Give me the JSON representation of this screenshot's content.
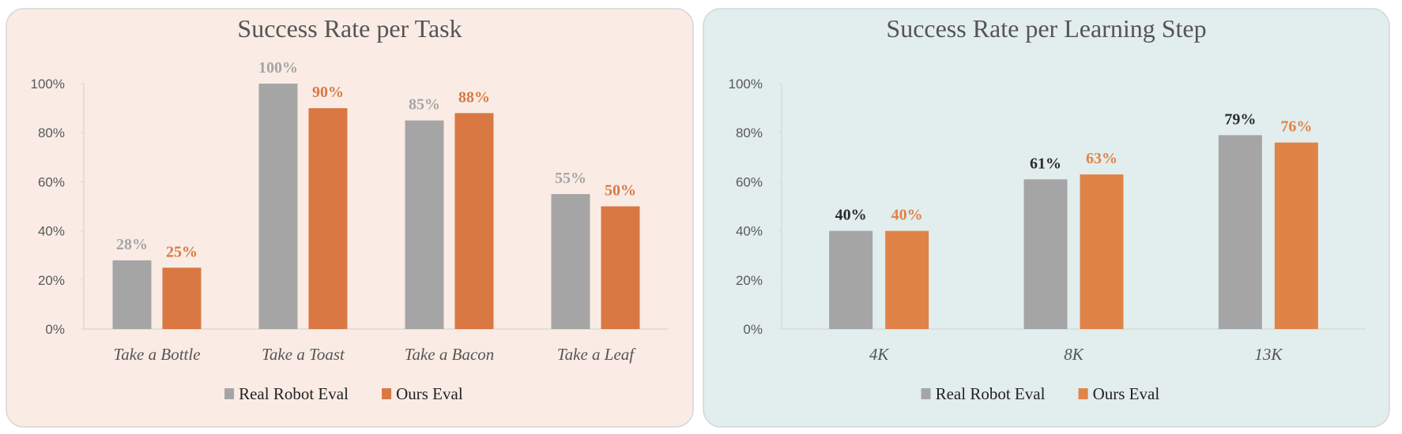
{
  "chart_data": [
    {
      "type": "bar",
      "title": "Success Rate per Task",
      "categories": [
        "Take a Bottle",
        "Take a Toast",
        "Take a Bacon",
        "Take a Leaf"
      ],
      "series": [
        {
          "name": "Real Robot Eval",
          "values": [
            28,
            100,
            85,
            55
          ],
          "color": "#a5a5a5",
          "label_color": "#a5a5a5"
        },
        {
          "name": "Ours Eval",
          "values": [
            25,
            90,
            88,
            50
          ],
          "color": "#d97843",
          "label_color": "#d97843"
        }
      ],
      "yticks": [
        "0%",
        "20%",
        "40%",
        "60%",
        "80%",
        "100%"
      ],
      "ylim": [
        0,
        100
      ],
      "legend": "bottom",
      "background": "#faece5",
      "grid": false
    },
    {
      "type": "bar",
      "title": "Success Rate per Learning Step",
      "categories": [
        "4K",
        "8K",
        "13K"
      ],
      "series": [
        {
          "name": "Real Robot Eval",
          "values": [
            40,
            61,
            79
          ],
          "color": "#a5a5a5",
          "label_color": "#2b2b2b"
        },
        {
          "name": "Ours Eval",
          "values": [
            40,
            63,
            76
          ],
          "color": "#e08347",
          "label_color": "#e08347"
        }
      ],
      "yticks": [
        "0%",
        "20%",
        "40%",
        "60%",
        "80%",
        "100%"
      ],
      "ylim": [
        0,
        100
      ],
      "legend": "bottom",
      "background": "#e2eded",
      "grid": false
    }
  ]
}
